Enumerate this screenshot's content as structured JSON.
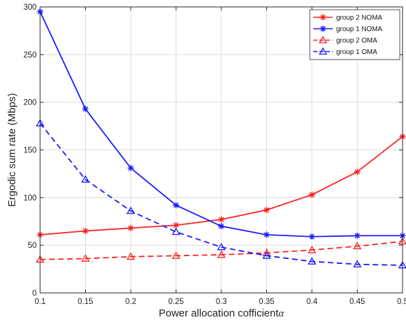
{
  "chart_data": {
    "type": "line",
    "xlabel": "Power allocation cofficient",
    "xlabel_symbol": "α",
    "ylabel": "Ergodic sum rate (Mbps)",
    "x": [
      0.1,
      0.15,
      0.2,
      0.25,
      0.3,
      0.35,
      0.4,
      0.45,
      0.5
    ],
    "xticks": [
      "0.1",
      "0.15",
      "0.2",
      "0.25",
      "0.3",
      "0.35",
      "0.4",
      "0.45",
      "0.5"
    ],
    "yticks": [
      "0",
      "50",
      "100",
      "150",
      "200",
      "250",
      "300"
    ],
    "xlim": [
      0.1,
      0.5
    ],
    "ylim": [
      0,
      300
    ],
    "grid": true,
    "legend_position": "top-right",
    "series": [
      {
        "name": "group 2 NOMA",
        "color": "#ff2020",
        "line": "solid",
        "marker": "star",
        "values": [
          61,
          65,
          68,
          71,
          77,
          87,
          103,
          127,
          164
        ]
      },
      {
        "name": "group 1 NOMA",
        "color": "#1a1aff",
        "line": "solid",
        "marker": "star",
        "values": [
          295,
          193,
          131,
          92,
          70,
          61,
          59,
          60,
          60
        ]
      },
      {
        "name": "group 2 OMA",
        "color": "#ff2020",
        "line": "dashed",
        "marker": "triangle",
        "values": [
          35,
          36,
          38,
          39,
          40,
          42,
          45,
          49,
          54
        ]
      },
      {
        "name": "group 1 OMA",
        "color": "#1a1aff",
        "line": "dashed",
        "marker": "triangle",
        "values": [
          178,
          119,
          86,
          64,
          48,
          39,
          33,
          30,
          29
        ]
      }
    ]
  }
}
